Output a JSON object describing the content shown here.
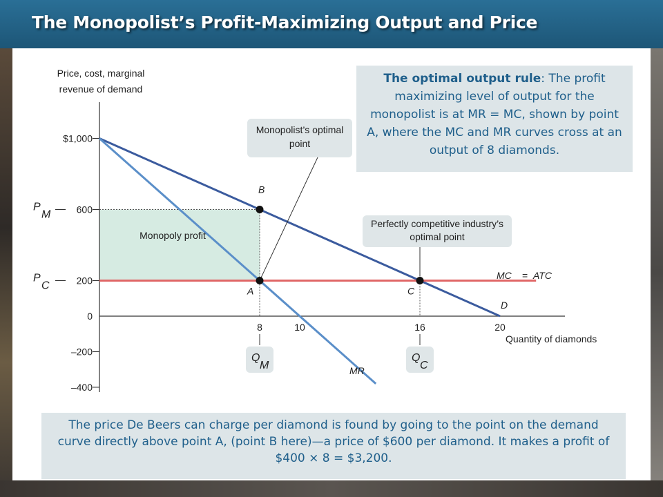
{
  "title": "The Monopolist’s Profit-Maximizing Output and Price",
  "callouts": {
    "monopolist_optimal": "Monopolist’s optimal point",
    "competitive_optimal": "Perfectly competitive industry’s optimal point",
    "monopoly_profit": "Monopoly profit"
  },
  "rule_box": {
    "heading": "The optimal output rule",
    "text": ": The profit maximizing level of output for the monopolist is at MR = MC, shown by point A, where the MC and MR curves cross at an output of 8 diamonds."
  },
  "bottom_box": {
    "text": "The price De Beers can charge per diamond is found by going to the point on the demand curve directly above point A, (point B here)—a price of $600 per diamond. It makes a profit of $400 × 8 = $3,200."
  },
  "colors": {
    "title_bar": "#1f5f86",
    "demand": "#3b5b9e",
    "mr": "#5b8fc9",
    "mc": "#e06666",
    "profit_area": "#d6ebe2",
    "callout_box": "#dfe6e8",
    "text_blue": "#1f5f8b"
  },
  "chart_data": {
    "type": "line",
    "ylabel": "Price, cost, marginal revenue of demand",
    "xlabel": "Quantity of diamonds",
    "xlim": [
      0,
      20
    ],
    "ylim": [
      -400,
      1000
    ],
    "y_ticks": [
      {
        "value": 1000,
        "label": "$1,000"
      },
      {
        "value": 600,
        "label": "600"
      },
      {
        "value": 200,
        "label": "200"
      },
      {
        "value": 0,
        "label": "0"
      },
      {
        "value": -200,
        "label": "–200"
      },
      {
        "value": -400,
        "label": "–400"
      }
    ],
    "x_ticks": [
      {
        "value": 8,
        "label": "8"
      },
      {
        "value": 10,
        "label": "10"
      },
      {
        "value": 16,
        "label": "16"
      },
      {
        "value": 20,
        "label": "20"
      }
    ],
    "series": [
      {
        "name": "D",
        "x": [
          0,
          20
        ],
        "y": [
          1000,
          0
        ]
      },
      {
        "name": "MR",
        "x": [
          0,
          13.8
        ],
        "y": [
          1000,
          -380
        ]
      },
      {
        "name": "MC = ATC",
        "x": [
          0,
          21.8
        ],
        "y": [
          200,
          200
        ]
      }
    ],
    "points": [
      {
        "label": "A",
        "x": 8,
        "y": 200
      },
      {
        "label": "B",
        "x": 8,
        "y": 600
      },
      {
        "label": "C",
        "x": 16,
        "y": 200
      }
    ],
    "price_labels": [
      {
        "main": "P",
        "sub": "M",
        "y": 600
      },
      {
        "main": "P",
        "sub": "C",
        "y": 200
      }
    ],
    "quantity_labels": [
      {
        "main": "Q",
        "sub": "M",
        "x": 8
      },
      {
        "main": "Q",
        "sub": "C",
        "x": 16
      }
    ],
    "curve_labels": {
      "demand": "D",
      "mr": "MR",
      "mc": "MC",
      "equals": "=",
      "atc": "ATC"
    },
    "profit_region": {
      "x": [
        0,
        8
      ],
      "y": [
        200,
        600
      ]
    }
  }
}
